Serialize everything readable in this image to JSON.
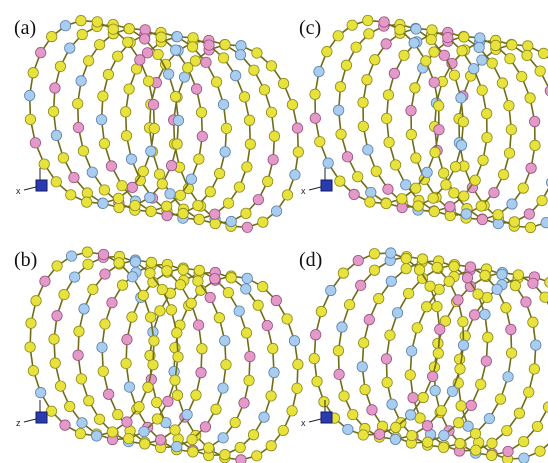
{
  "panels": [
    {
      "label": "(a)",
      "axis": "x"
    },
    {
      "label": "(b)",
      "axis": "z"
    },
    {
      "label": "(c)",
      "axis": "x"
    },
    {
      "label": "(d)",
      "axis": "x"
    }
  ]
}
